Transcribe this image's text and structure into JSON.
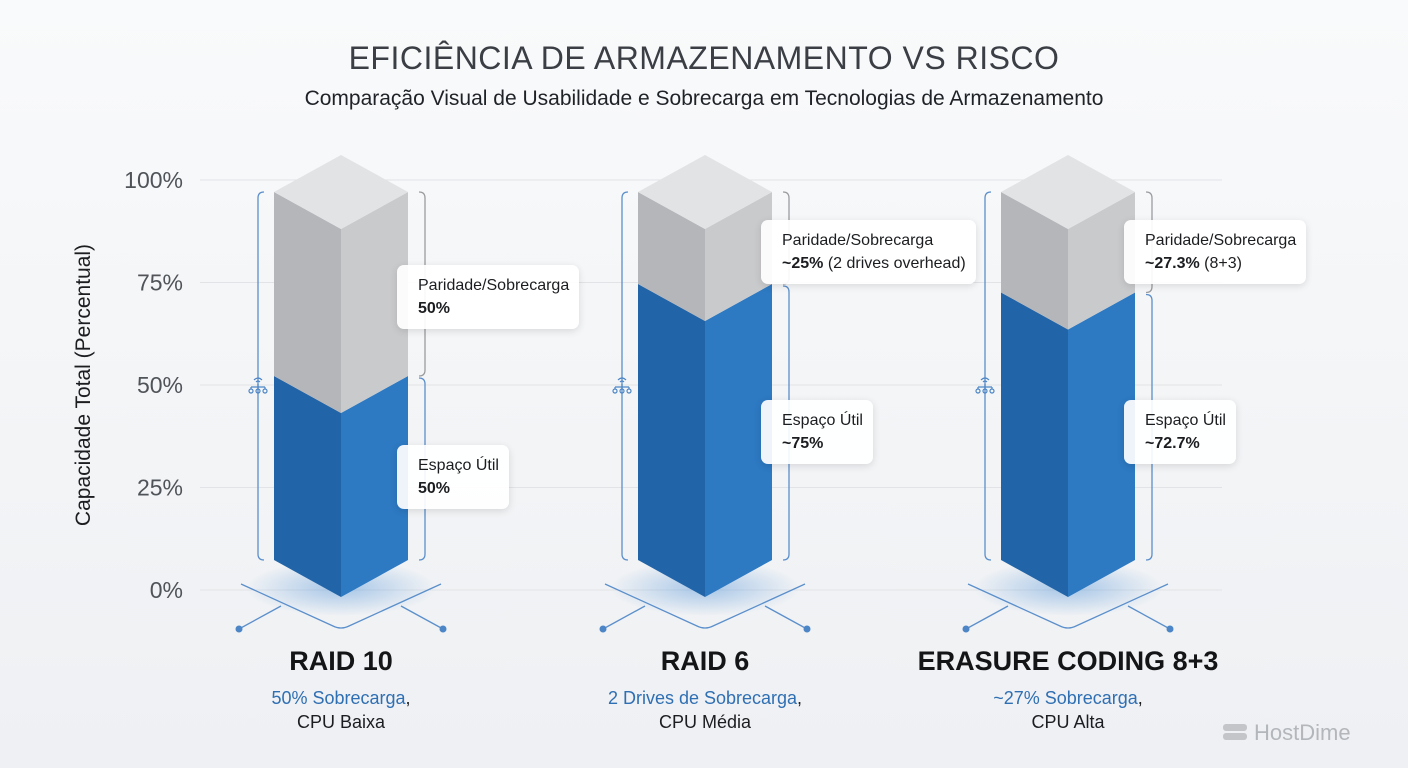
{
  "title": "EFICIÊNCIA DE ARMAZENAMENTO VS RISCO",
  "subtitle": "Comparação Visual de Usabilidade e Sobrecarga em Tecnologias de Armazenamento",
  "logo": "HostDime",
  "chart_data": {
    "type": "bar",
    "stacked": true,
    "ylabel": "Capacidade Total (Percentual)",
    "ylim": [
      0,
      100
    ],
    "yticks": [
      "0%",
      "25%",
      "50%",
      "75%",
      "100%"
    ],
    "grid": true,
    "colors": {
      "usable": "#2d79c2",
      "overhead": "#c9cacc"
    },
    "categories": [
      {
        "name": "RAID 10",
        "usable": 50,
        "overhead": 50,
        "overhead_title": "Paridade/Sobrecarga",
        "overhead_value": "50%",
        "overhead_note": "",
        "usable_title": "Espaço Útil",
        "usable_value": "50%",
        "sub_blue": "50% Sobrecarga",
        "sub_comma": ",",
        "sub_cpu": "CPU Baixa"
      },
      {
        "name": "RAID 6",
        "usable": 75,
        "overhead": 25,
        "overhead_title": "Paridade/Sobrecarga",
        "overhead_value": "~25%",
        "overhead_note": " (2 drives overhead)",
        "usable_title": "Espaço Útil",
        "usable_value": "~75%",
        "sub_blue": "2 Drives de Sobrecarga",
        "sub_comma": ",",
        "sub_cpu": "CPU Média"
      },
      {
        "name": "ERASURE CODING 8+3",
        "usable": 72.7,
        "overhead": 27.3,
        "overhead_title": "Paridade/Sobrecarga",
        "overhead_value": "~27.3%",
        "overhead_note": " (8+3)",
        "usable_title": "Espaço Útil",
        "usable_value": "~72.7%",
        "sub_blue": "~27% Sobrecarga",
        "sub_comma": ",",
        "sub_cpu": "CPU Alta"
      }
    ]
  }
}
